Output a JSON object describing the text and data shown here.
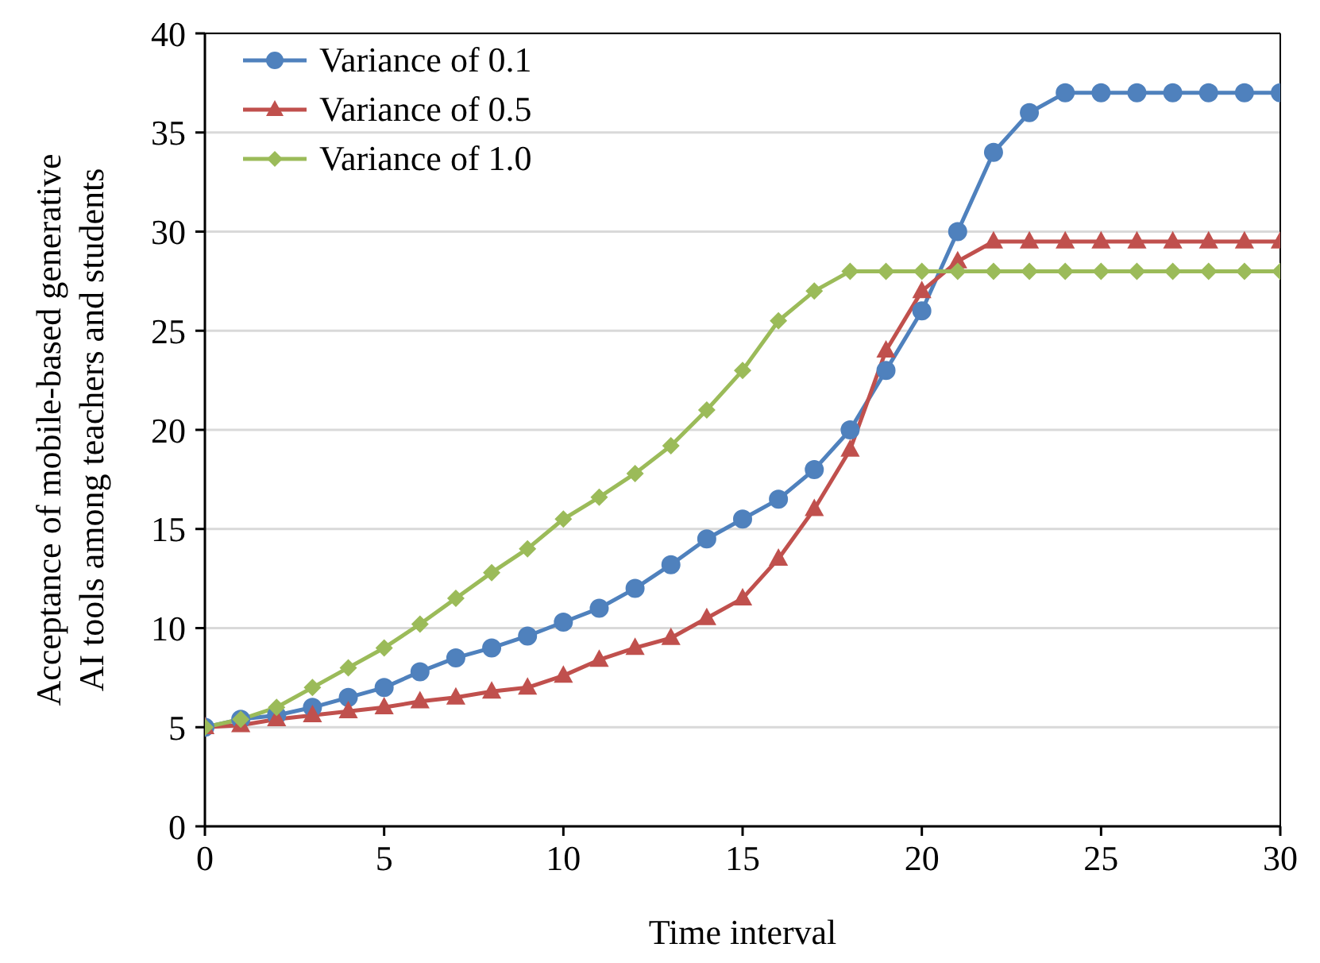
{
  "chart_data": {
    "type": "line",
    "xlabel": "Time interval",
    "ylabel": "Acceptance of mobile-based generative\nAI tools among teachers and students",
    "x": [
      0,
      1,
      2,
      3,
      4,
      5,
      6,
      7,
      8,
      9,
      10,
      11,
      12,
      13,
      14,
      15,
      16,
      17,
      18,
      19,
      20,
      21,
      22,
      23,
      24,
      25,
      26,
      27,
      28,
      29,
      30
    ],
    "series": [
      {
        "name": "Variance of 0.1",
        "color": "#4f81bd",
        "marker": "circle",
        "values": [
          5,
          5.4,
          5.6,
          6,
          6.5,
          7,
          7.8,
          8.5,
          9,
          9.6,
          10.3,
          11,
          12,
          13.2,
          14.5,
          15.5,
          16.5,
          18,
          20,
          23,
          26,
          30,
          34,
          36,
          37,
          37,
          37,
          37,
          37,
          37,
          37
        ]
      },
      {
        "name": "Variance of 0.5",
        "color": "#c0504d",
        "marker": "triangle",
        "values": [
          5,
          5.1,
          5.4,
          5.6,
          5.8,
          6,
          6.3,
          6.5,
          6.8,
          7,
          7.6,
          8.4,
          9,
          9.5,
          10.5,
          11.5,
          13.5,
          16,
          19,
          24,
          27,
          28.5,
          29.5,
          29.5,
          29.5,
          29.5,
          29.5,
          29.5,
          29.5,
          29.5,
          29.5
        ]
      },
      {
        "name": "Variance of 1.0",
        "color": "#9bbb59",
        "marker": "diamond",
        "values": [
          5,
          5.4,
          6,
          7,
          8,
          9,
          10.2,
          11.5,
          12.8,
          14,
          15.5,
          16.6,
          17.8,
          19.2,
          21,
          23,
          25.5,
          27,
          28,
          28,
          28,
          28,
          28,
          28,
          28,
          28,
          28,
          28,
          28,
          28,
          28
        ]
      }
    ],
    "xlim": [
      0,
      30
    ],
    "xticks": [
      0,
      5,
      10,
      15,
      20,
      25,
      30
    ],
    "ylim": [
      0,
      40
    ],
    "yticks": [
      0,
      5,
      10,
      15,
      20,
      25,
      30,
      35,
      40
    ],
    "grid": "y",
    "legend": "top left",
    "line_style": "solid"
  }
}
